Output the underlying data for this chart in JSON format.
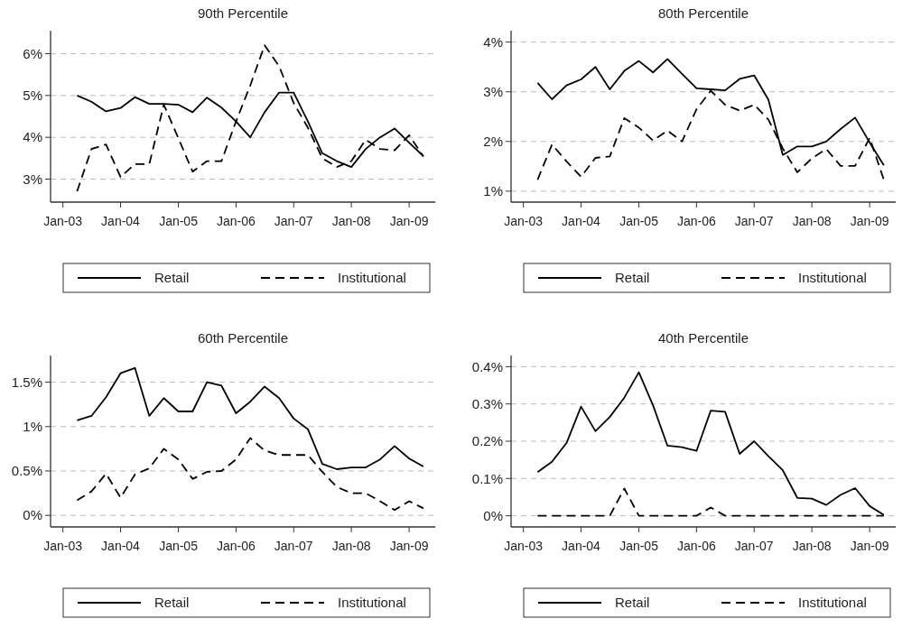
{
  "chart_data": [
    {
      "type": "line",
      "title": "90th Percentile",
      "x": [
        "2003-04",
        "2003-07",
        "2003-10",
        "2004-01",
        "2004-04",
        "2004-07",
        "2004-10",
        "2005-01",
        "2005-04",
        "2005-07",
        "2005-10",
        "2006-01",
        "2006-04",
        "2006-07",
        "2006-10",
        "2007-01",
        "2007-04",
        "2007-07",
        "2007-10",
        "2008-01",
        "2008-04",
        "2008-07",
        "2008-10",
        "2009-01",
        "2009-04"
      ],
      "series": [
        {
          "name": "Retail",
          "color": "#000000",
          "line_style": "solid",
          "values": [
            5.0,
            4.85,
            4.62,
            4.7,
            4.96,
            4.8,
            4.8,
            4.78,
            4.6,
            4.95,
            4.71,
            4.38,
            4.0,
            4.6,
            5.07,
            5.07,
            4.38,
            3.62,
            3.43,
            3.29,
            3.72,
            4.0,
            4.21,
            3.87,
            3.55
          ]
        },
        {
          "name": "Institutional",
          "color": "#000000",
          "line_style": "dashed",
          "values": [
            2.71,
            3.72,
            3.83,
            3.05,
            3.36,
            3.36,
            4.78,
            3.98,
            3.18,
            3.43,
            3.43,
            4.38,
            5.24,
            6.2,
            5.7,
            4.82,
            4.23,
            3.5,
            3.29,
            3.43,
            3.94,
            3.72,
            3.69,
            4.05,
            3.54
          ]
        }
      ],
      "ylim": [
        2.45,
        6.55
      ],
      "yticks": [
        {
          "value": 3,
          "label": "3%"
        },
        {
          "value": 4,
          "label": "4%"
        },
        {
          "value": 5,
          "label": "5%"
        },
        {
          "value": 6,
          "label": "6%"
        }
      ],
      "xlim": [
        "2002-10-15",
        "2009-06-15"
      ],
      "xticks": [
        {
          "value": "2003-01",
          "label": "Jan-03"
        },
        {
          "value": "2004-01",
          "label": "Jan-04"
        },
        {
          "value": "2005-01",
          "label": "Jan-05"
        },
        {
          "value": "2006-01",
          "label": "Jan-06"
        },
        {
          "value": "2007-01",
          "label": "Jan-07"
        },
        {
          "value": "2008-01",
          "label": "Jan-08"
        },
        {
          "value": "2009-01",
          "label": "Jan-09"
        }
      ],
      "grid": "y",
      "legend": "bottom"
    },
    {
      "type": "line",
      "title": "80th Percentile",
      "x": [
        "2003-04",
        "2003-07",
        "2003-10",
        "2004-01",
        "2004-04",
        "2004-07",
        "2004-10",
        "2005-01",
        "2005-04",
        "2005-07",
        "2005-10",
        "2006-01",
        "2006-04",
        "2006-07",
        "2006-10",
        "2007-01",
        "2007-04",
        "2007-07",
        "2007-10",
        "2008-01",
        "2008-04",
        "2008-07",
        "2008-10",
        "2009-01",
        "2009-04"
      ],
      "series": [
        {
          "name": "Retail",
          "color": "#000000",
          "line_style": "solid",
          "values": [
            3.18,
            2.85,
            3.13,
            3.25,
            3.5,
            3.05,
            3.42,
            3.62,
            3.39,
            3.66,
            3.36,
            3.07,
            3.05,
            3.03,
            3.26,
            3.33,
            2.84,
            1.73,
            1.9,
            1.9,
            2.0,
            2.25,
            2.48,
            1.98,
            1.52
          ]
        },
        {
          "name": "Institutional",
          "color": "#000000",
          "line_style": "dashed",
          "values": [
            1.23,
            1.94,
            1.6,
            1.29,
            1.67,
            1.7,
            2.47,
            2.28,
            2.02,
            2.22,
            2.0,
            2.65,
            3.02,
            2.74,
            2.62,
            2.74,
            2.44,
            1.86,
            1.38,
            1.66,
            1.85,
            1.51,
            1.51,
            2.07,
            1.23
          ]
        }
      ],
      "ylim": [
        0.78,
        4.23
      ],
      "yticks": [
        {
          "value": 1,
          "label": "1%"
        },
        {
          "value": 2,
          "label": "2%"
        },
        {
          "value": 3,
          "label": "3%"
        },
        {
          "value": 4,
          "label": "4%"
        }
      ],
      "xlim": [
        "2002-10-15",
        "2009-06-15"
      ],
      "xticks": [
        {
          "value": "2003-01",
          "label": "Jan-03"
        },
        {
          "value": "2004-01",
          "label": "Jan-04"
        },
        {
          "value": "2005-01",
          "label": "Jan-05"
        },
        {
          "value": "2006-01",
          "label": "Jan-06"
        },
        {
          "value": "2007-01",
          "label": "Jan-07"
        },
        {
          "value": "2008-01",
          "label": "Jan-08"
        },
        {
          "value": "2009-01",
          "label": "Jan-09"
        }
      ],
      "grid": "y",
      "legend": "bottom"
    },
    {
      "type": "line",
      "title": "60th Percentile",
      "x": [
        "2003-04",
        "2003-07",
        "2003-10",
        "2004-01",
        "2004-04",
        "2004-07",
        "2004-10",
        "2005-01",
        "2005-04",
        "2005-07",
        "2005-10",
        "2006-01",
        "2006-04",
        "2006-07",
        "2006-10",
        "2007-01",
        "2007-04",
        "2007-07",
        "2007-10",
        "2008-01",
        "2008-04",
        "2008-07",
        "2008-10",
        "2009-01",
        "2009-04"
      ],
      "series": [
        {
          "name": "Retail",
          "color": "#000000",
          "line_style": "solid",
          "values": [
            1.07,
            1.12,
            1.33,
            1.6,
            1.66,
            1.12,
            1.32,
            1.17,
            1.17,
            1.5,
            1.46,
            1.15,
            1.28,
            1.45,
            1.32,
            1.09,
            0.97,
            0.58,
            0.52,
            0.54,
            0.54,
            0.63,
            0.78,
            0.64,
            0.55
          ]
        },
        {
          "name": "Institutional",
          "color": "#000000",
          "line_style": "dashed",
          "values": [
            0.17,
            0.27,
            0.47,
            0.2,
            0.46,
            0.53,
            0.75,
            0.63,
            0.41,
            0.49,
            0.5,
            0.63,
            0.87,
            0.73,
            0.68,
            0.68,
            0.68,
            0.49,
            0.32,
            0.25,
            0.25,
            0.16,
            0.06,
            0.16,
            0.08
          ]
        }
      ],
      "ylim": [
        -0.13,
        1.8
      ],
      "yticks": [
        {
          "value": 0,
          "label": "0%"
        },
        {
          "value": 0.5,
          "label": "0.5%"
        },
        {
          "value": 1,
          "label": "1%"
        },
        {
          "value": 1.5,
          "label": "1.5%"
        }
      ],
      "xlim": [
        "2002-10-15",
        "2009-06-15"
      ],
      "xticks": [
        {
          "value": "2003-01",
          "label": "Jan-03"
        },
        {
          "value": "2004-01",
          "label": "Jan-04"
        },
        {
          "value": "2005-01",
          "label": "Jan-05"
        },
        {
          "value": "2006-01",
          "label": "Jan-06"
        },
        {
          "value": "2007-01",
          "label": "Jan-07"
        },
        {
          "value": "2008-01",
          "label": "Jan-08"
        },
        {
          "value": "2009-01",
          "label": "Jan-09"
        }
      ],
      "grid": "y",
      "legend": "bottom"
    },
    {
      "type": "line",
      "title": "40th Percentile",
      "x": [
        "2003-04",
        "2003-07",
        "2003-10",
        "2004-01",
        "2004-04",
        "2004-07",
        "2004-10",
        "2005-01",
        "2005-04",
        "2005-07",
        "2005-10",
        "2006-01",
        "2006-04",
        "2006-07",
        "2006-10",
        "2007-01",
        "2007-04",
        "2007-07",
        "2007-10",
        "2008-01",
        "2008-04",
        "2008-07",
        "2008-10",
        "2009-01",
        "2009-04"
      ],
      "series": [
        {
          "name": "Retail",
          "color": "#000000",
          "line_style": "solid",
          "values": [
            0.117,
            0.145,
            0.195,
            0.293,
            0.227,
            0.265,
            0.317,
            0.385,
            0.296,
            0.188,
            0.184,
            0.174,
            0.282,
            0.279,
            0.166,
            0.2,
            0.16,
            0.122,
            0.048,
            0.046,
            0.029,
            0.056,
            0.074,
            0.026,
            0.002
          ]
        },
        {
          "name": "Institutional",
          "color": "#000000",
          "line_style": "dashed",
          "values": [
            0,
            0,
            0,
            0,
            0,
            0,
            0.073,
            0,
            0,
            0,
            0,
            0,
            0.022,
            0,
            0,
            0,
            0,
            0,
            0,
            0,
            0,
            0,
            0,
            0,
            0
          ]
        }
      ],
      "ylim": [
        -0.03,
        0.43
      ],
      "yticks": [
        {
          "value": 0,
          "label": "0%"
        },
        {
          "value": 0.1,
          "label": "0.1%"
        },
        {
          "value": 0.2,
          "label": "0.2%"
        },
        {
          "value": 0.3,
          "label": "0.3%"
        },
        {
          "value": 0.4,
          "label": "0.4%"
        }
      ],
      "xlim": [
        "2002-10-15",
        "2009-06-15"
      ],
      "xticks": [
        {
          "value": "2003-01",
          "label": "Jan-03"
        },
        {
          "value": "2004-01",
          "label": "Jan-04"
        },
        {
          "value": "2005-01",
          "label": "Jan-05"
        },
        {
          "value": "2006-01",
          "label": "Jan-06"
        },
        {
          "value": "2007-01",
          "label": "Jan-07"
        },
        {
          "value": "2008-01",
          "label": "Jan-08"
        },
        {
          "value": "2009-01",
          "label": "Jan-09"
        }
      ],
      "grid": "y",
      "legend": "bottom"
    }
  ]
}
